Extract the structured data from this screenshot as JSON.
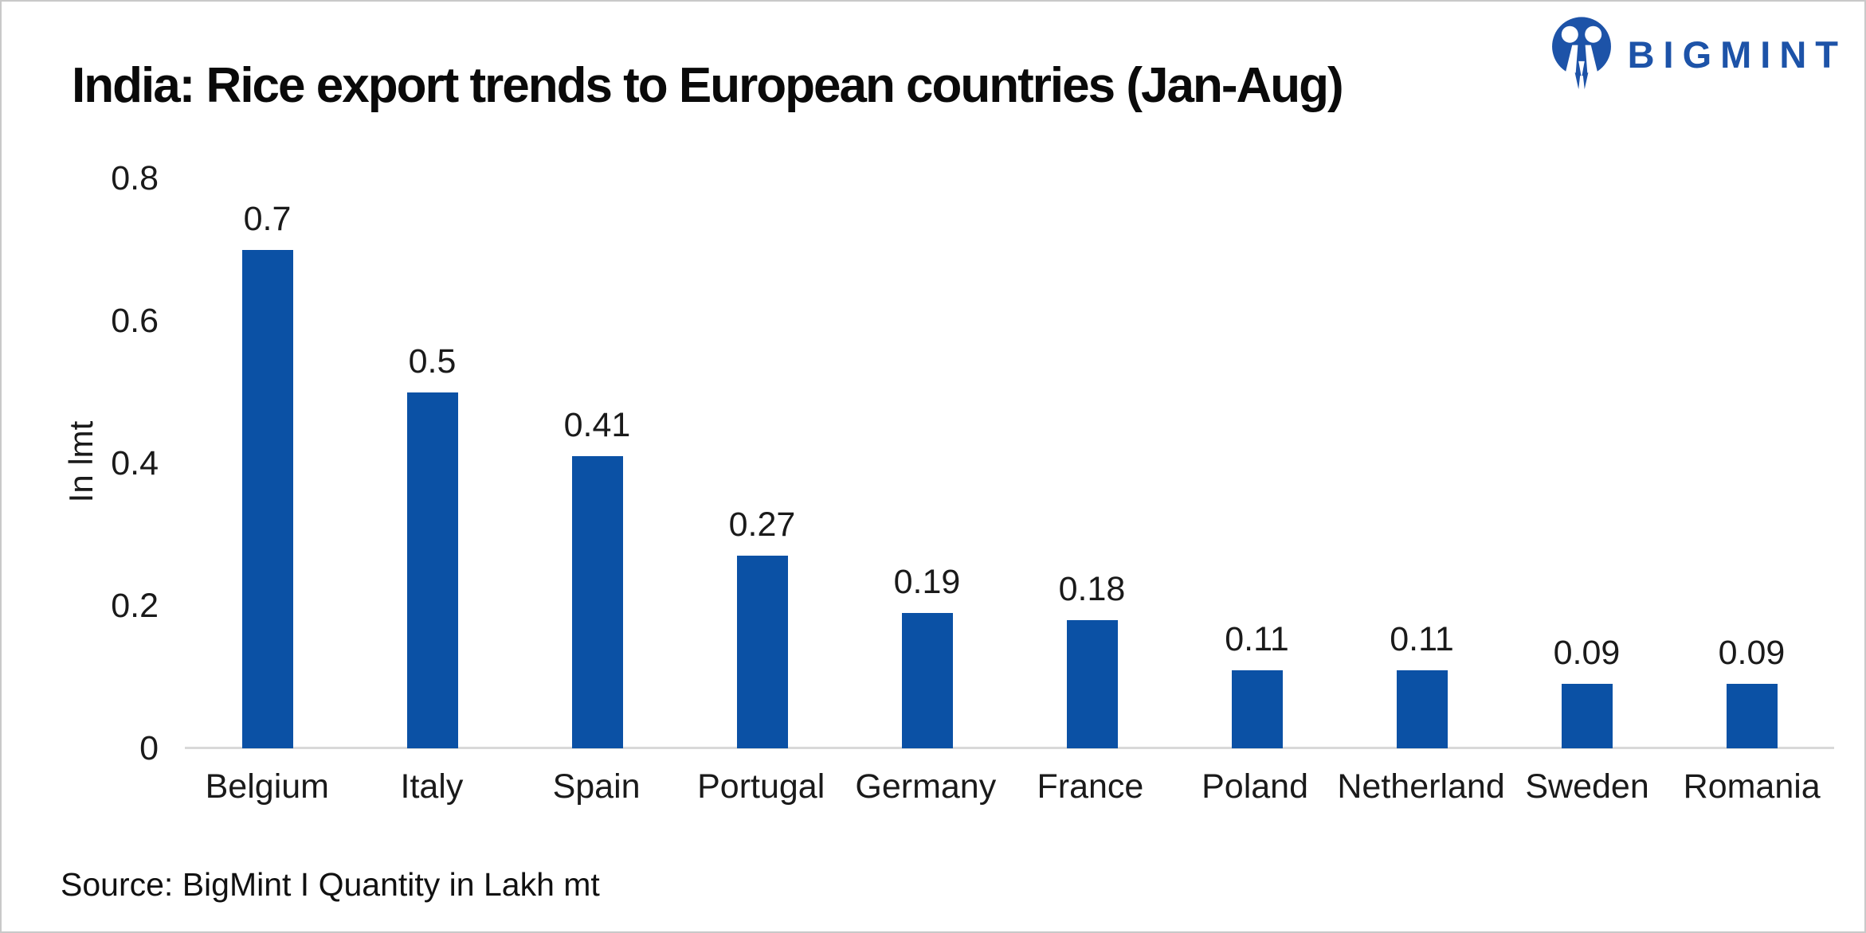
{
  "logo": {
    "text": "BIGMINT",
    "color": "#1d53a8"
  },
  "source": {
    "text": "Source: BigMint I Quantity in Lakh mt"
  },
  "chart_data": {
    "type": "bar",
    "title": "India: Rice export trends to European countries (Jan-Aug)",
    "categories": [
      "Belgium",
      "Italy",
      "Spain",
      "Portugal",
      "Germany",
      "France",
      "Poland",
      "Netherland",
      "Sweden",
      "Romania"
    ],
    "values": [
      0.7,
      0.5,
      0.41,
      0.27,
      0.19,
      0.18,
      0.11,
      0.11,
      0.09,
      0.09
    ],
    "value_labels": [
      "0.7",
      "0.5",
      "0.41",
      "0.27",
      "0.19",
      "0.18",
      "0.11",
      "0.11",
      "0.09",
      "0.09"
    ],
    "xlabel": "",
    "ylabel": "In lmt",
    "ylim": [
      0,
      0.8
    ],
    "yticks": [
      0.8,
      0.6,
      0.4,
      0.2,
      0
    ],
    "grid": false,
    "legend": null,
    "bar_color": "#0b51a5",
    "axis_line_color": "#d9d9d9"
  }
}
